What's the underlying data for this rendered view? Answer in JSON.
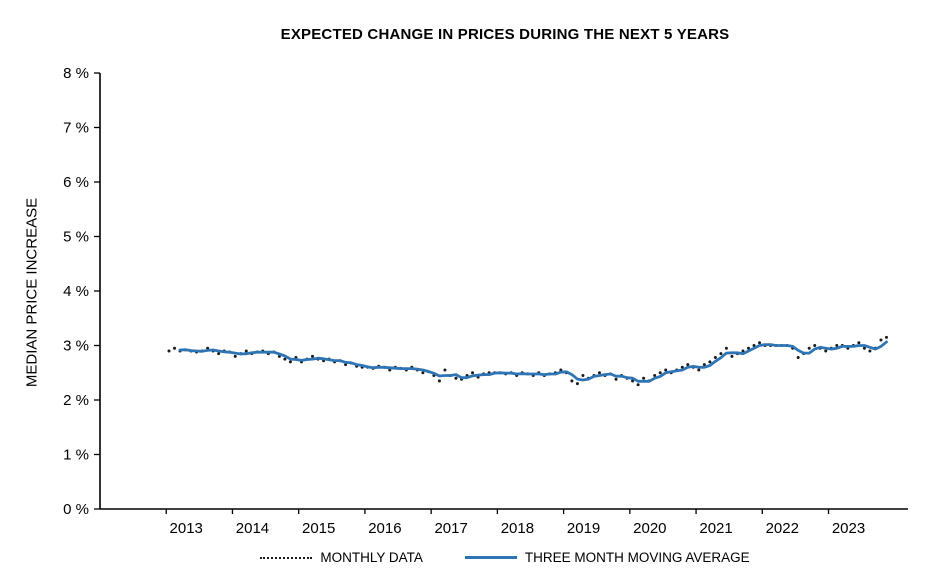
{
  "chart_data": {
    "type": "line",
    "title": "EXPECTED CHANGE IN PRICES DURING THE NEXT 5 YEARS",
    "xlabel": "",
    "ylabel": "MEDIAN PRICE INCREASE",
    "ylim": [
      0,
      8
    ],
    "xlim": [
      2012.0,
      2024.2
    ],
    "yticks": [
      0,
      1,
      2,
      3,
      4,
      5,
      6,
      7,
      8
    ],
    "ytick_suffix": " %",
    "xticks": [
      2013,
      2014,
      2015,
      2016,
      2017,
      2018,
      2019,
      2020,
      2021,
      2022,
      2023
    ],
    "grid": false,
    "legend_position": "bottom",
    "colors": {
      "monthly": "#1a1a1a",
      "moving_average": "#2E75B6",
      "axis": "#000000"
    },
    "series": [
      {
        "name": "MONTHLY DATA",
        "style": "dotted-points",
        "start_year": 2013,
        "start_month": 1,
        "values": [
          2.9,
          2.95,
          2.9,
          2.92,
          2.9,
          2.88,
          2.9,
          2.95,
          2.9,
          2.85,
          2.9,
          2.88,
          2.8,
          2.85,
          2.9,
          2.85,
          2.88,
          2.9,
          2.85,
          2.88,
          2.8,
          2.75,
          2.7,
          2.78,
          2.7,
          2.75,
          2.8,
          2.75,
          2.72,
          2.75,
          2.7,
          2.72,
          2.65,
          2.68,
          2.62,
          2.6,
          2.6,
          2.58,
          2.62,
          2.6,
          2.55,
          2.6,
          2.58,
          2.55,
          2.6,
          2.55,
          2.5,
          2.52,
          2.45,
          2.35,
          2.55,
          2.45,
          2.4,
          2.38,
          2.45,
          2.5,
          2.42,
          2.48,
          2.5,
          2.5,
          2.5,
          2.48,
          2.5,
          2.45,
          2.5,
          2.48,
          2.45,
          2.5,
          2.45,
          2.48,
          2.5,
          2.55,
          2.5,
          2.35,
          2.3,
          2.45,
          2.4,
          2.45,
          2.5,
          2.45,
          2.48,
          2.38,
          2.45,
          2.4,
          2.35,
          2.28,
          2.4,
          2.35,
          2.45,
          2.5,
          2.55,
          2.5,
          2.55,
          2.6,
          2.65,
          2.6,
          2.55,
          2.65,
          2.7,
          2.78,
          2.85,
          2.95,
          2.8,
          2.85,
          2.9,
          2.95,
          3.0,
          3.05,
          3.0,
          3.0,
          3.0,
          3.0,
          3.0,
          2.95,
          2.78,
          2.85,
          2.95,
          3.0,
          2.95,
          2.9,
          2.95,
          3.0,
          3.0,
          2.95,
          3.0,
          3.05,
          2.95,
          2.9,
          2.95,
          3.1,
          3.15
        ]
      },
      {
        "name": "THREE MONTH MOVING AVERAGE",
        "style": "line",
        "derived": "trailing_moving_average_3_of_series_0"
      }
    ]
  }
}
